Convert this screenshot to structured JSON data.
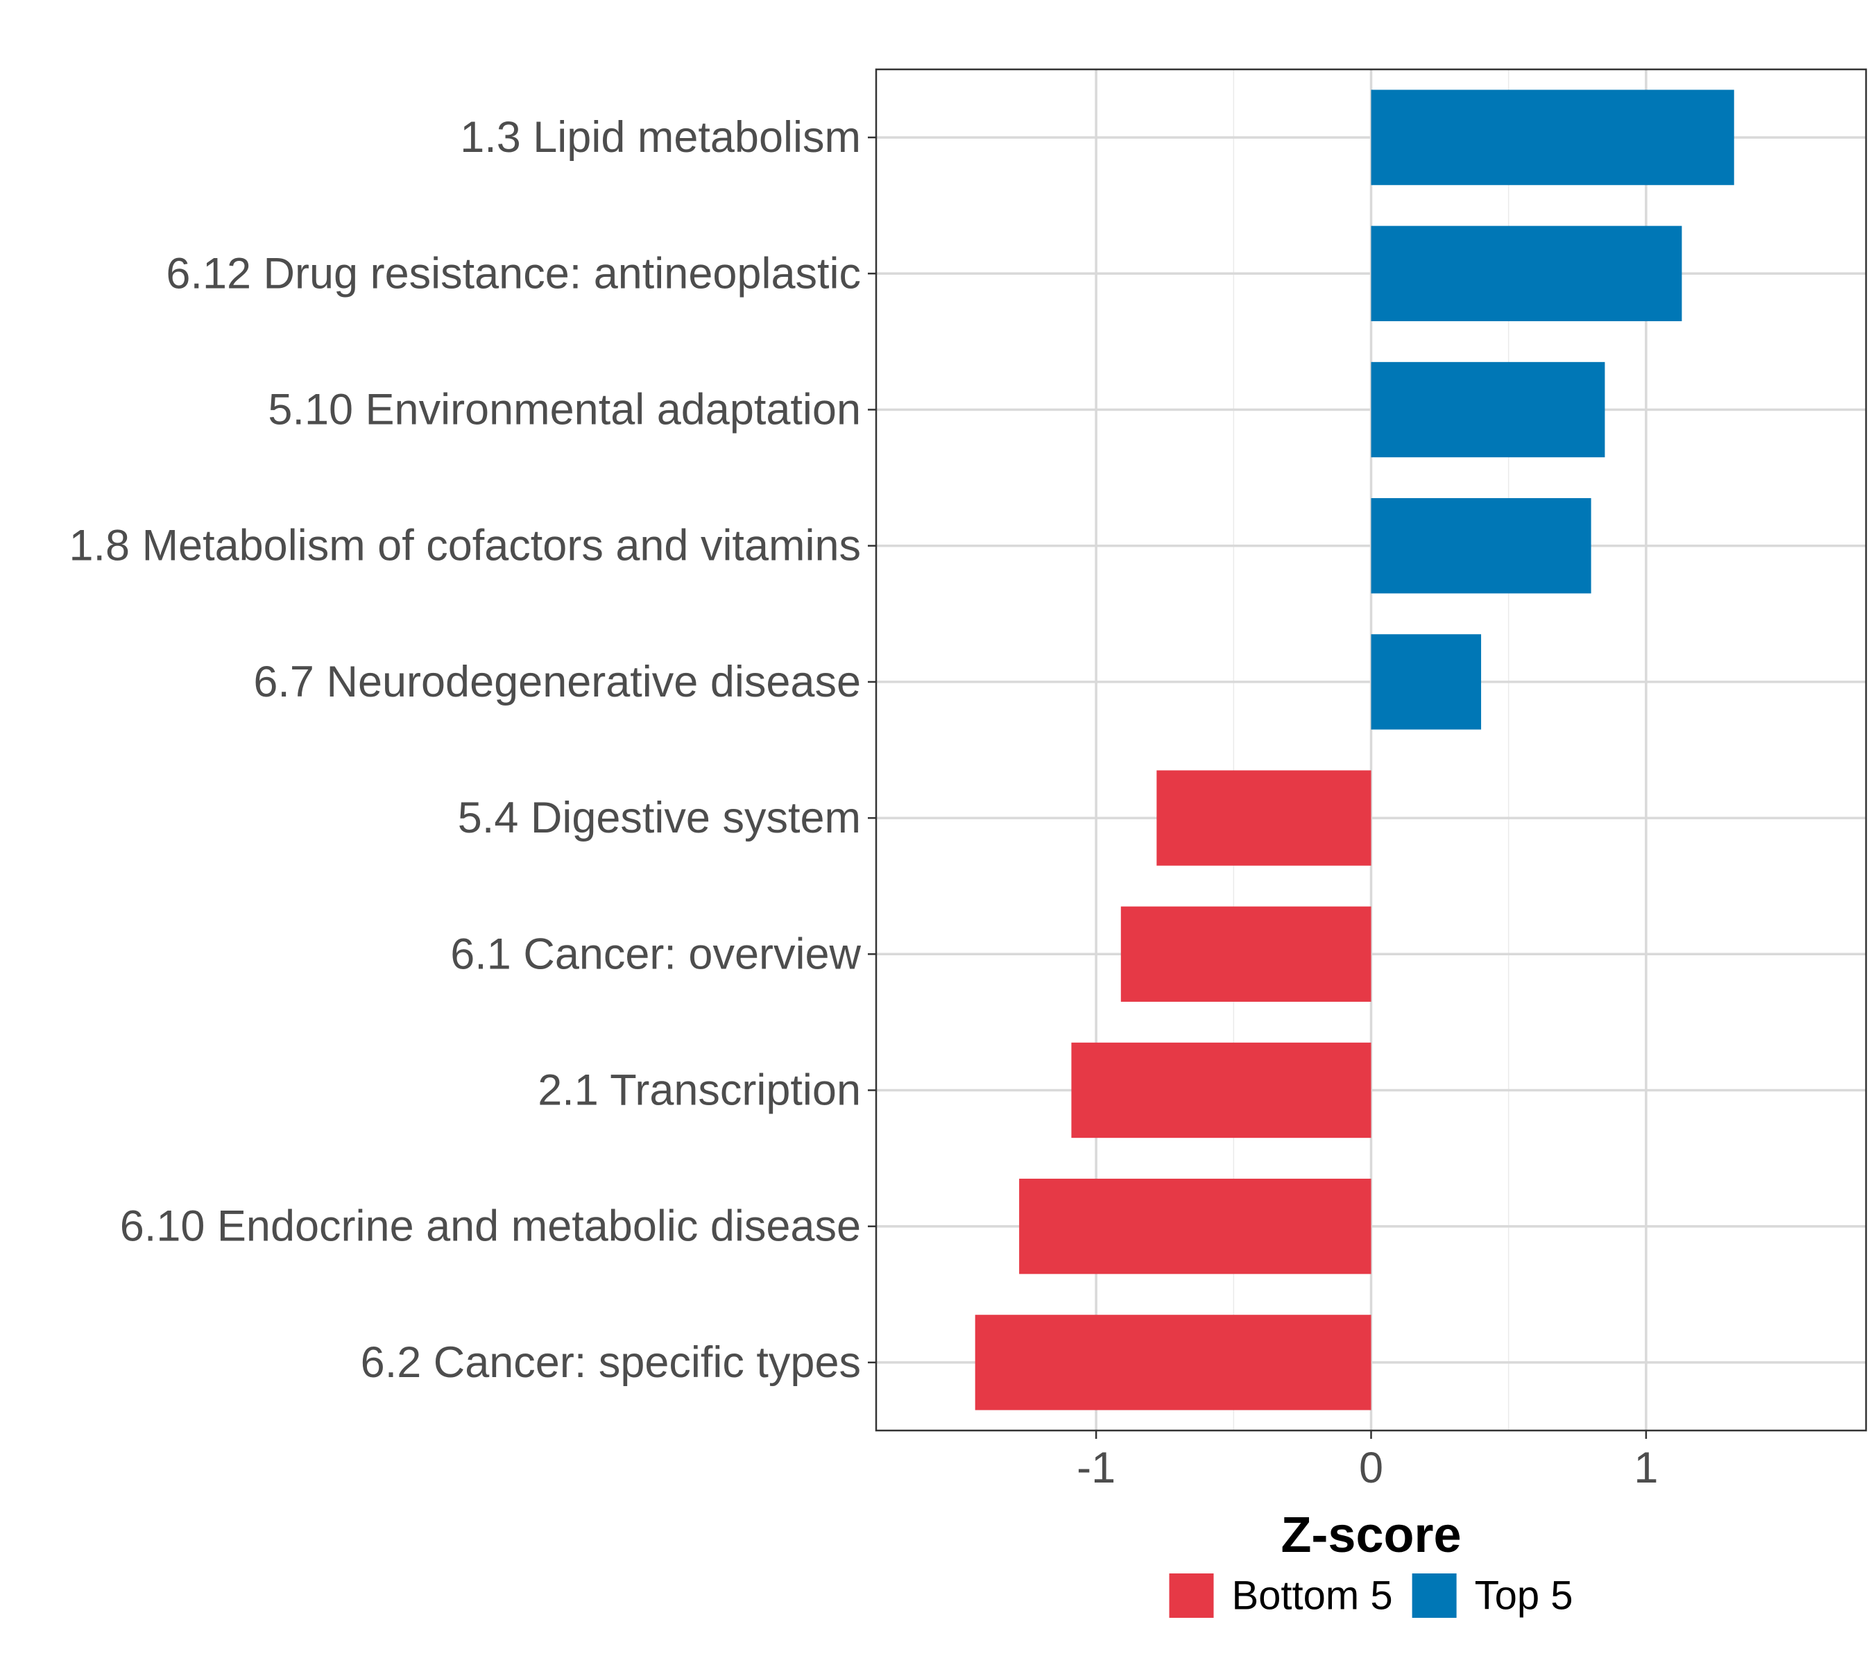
{
  "chart_data": {
    "type": "bar",
    "orientation": "horizontal",
    "title": "",
    "xlabel": "Z-score",
    "ylabel": "",
    "xlim": [
      -1.8,
      1.8
    ],
    "xticks": [
      -1,
      0,
      1
    ],
    "xtick_labels": [
      "-1",
      "0",
      "1"
    ],
    "grid": true,
    "legend_position": "bottom",
    "categories": [
      "1.3 Lipid metabolism",
      "6.12 Drug resistance: antineoplastic",
      "5.10 Environmental adaptation",
      "1.8 Metabolism of cofactors and vitamins",
      "6.7 Neurodegenerative disease",
      "5.4 Digestive system",
      "6.1 Cancer: overview",
      "2.1 Transcription",
      "6.10 Endocrine and metabolic disease",
      "6.2 Cancer: specific types"
    ],
    "values": [
      1.32,
      1.13,
      0.85,
      0.8,
      0.4,
      -0.78,
      -0.91,
      -1.09,
      -1.28,
      -1.44
    ],
    "groups": [
      "Top 5",
      "Top 5",
      "Top 5",
      "Top 5",
      "Top 5",
      "Bottom 5",
      "Bottom 5",
      "Bottom 5",
      "Bottom 5",
      "Bottom 5"
    ],
    "legend": [
      {
        "name": "Bottom 5",
        "color": "#e63946"
      },
      {
        "name": "Top 5",
        "color": "#0077b6"
      }
    ]
  }
}
